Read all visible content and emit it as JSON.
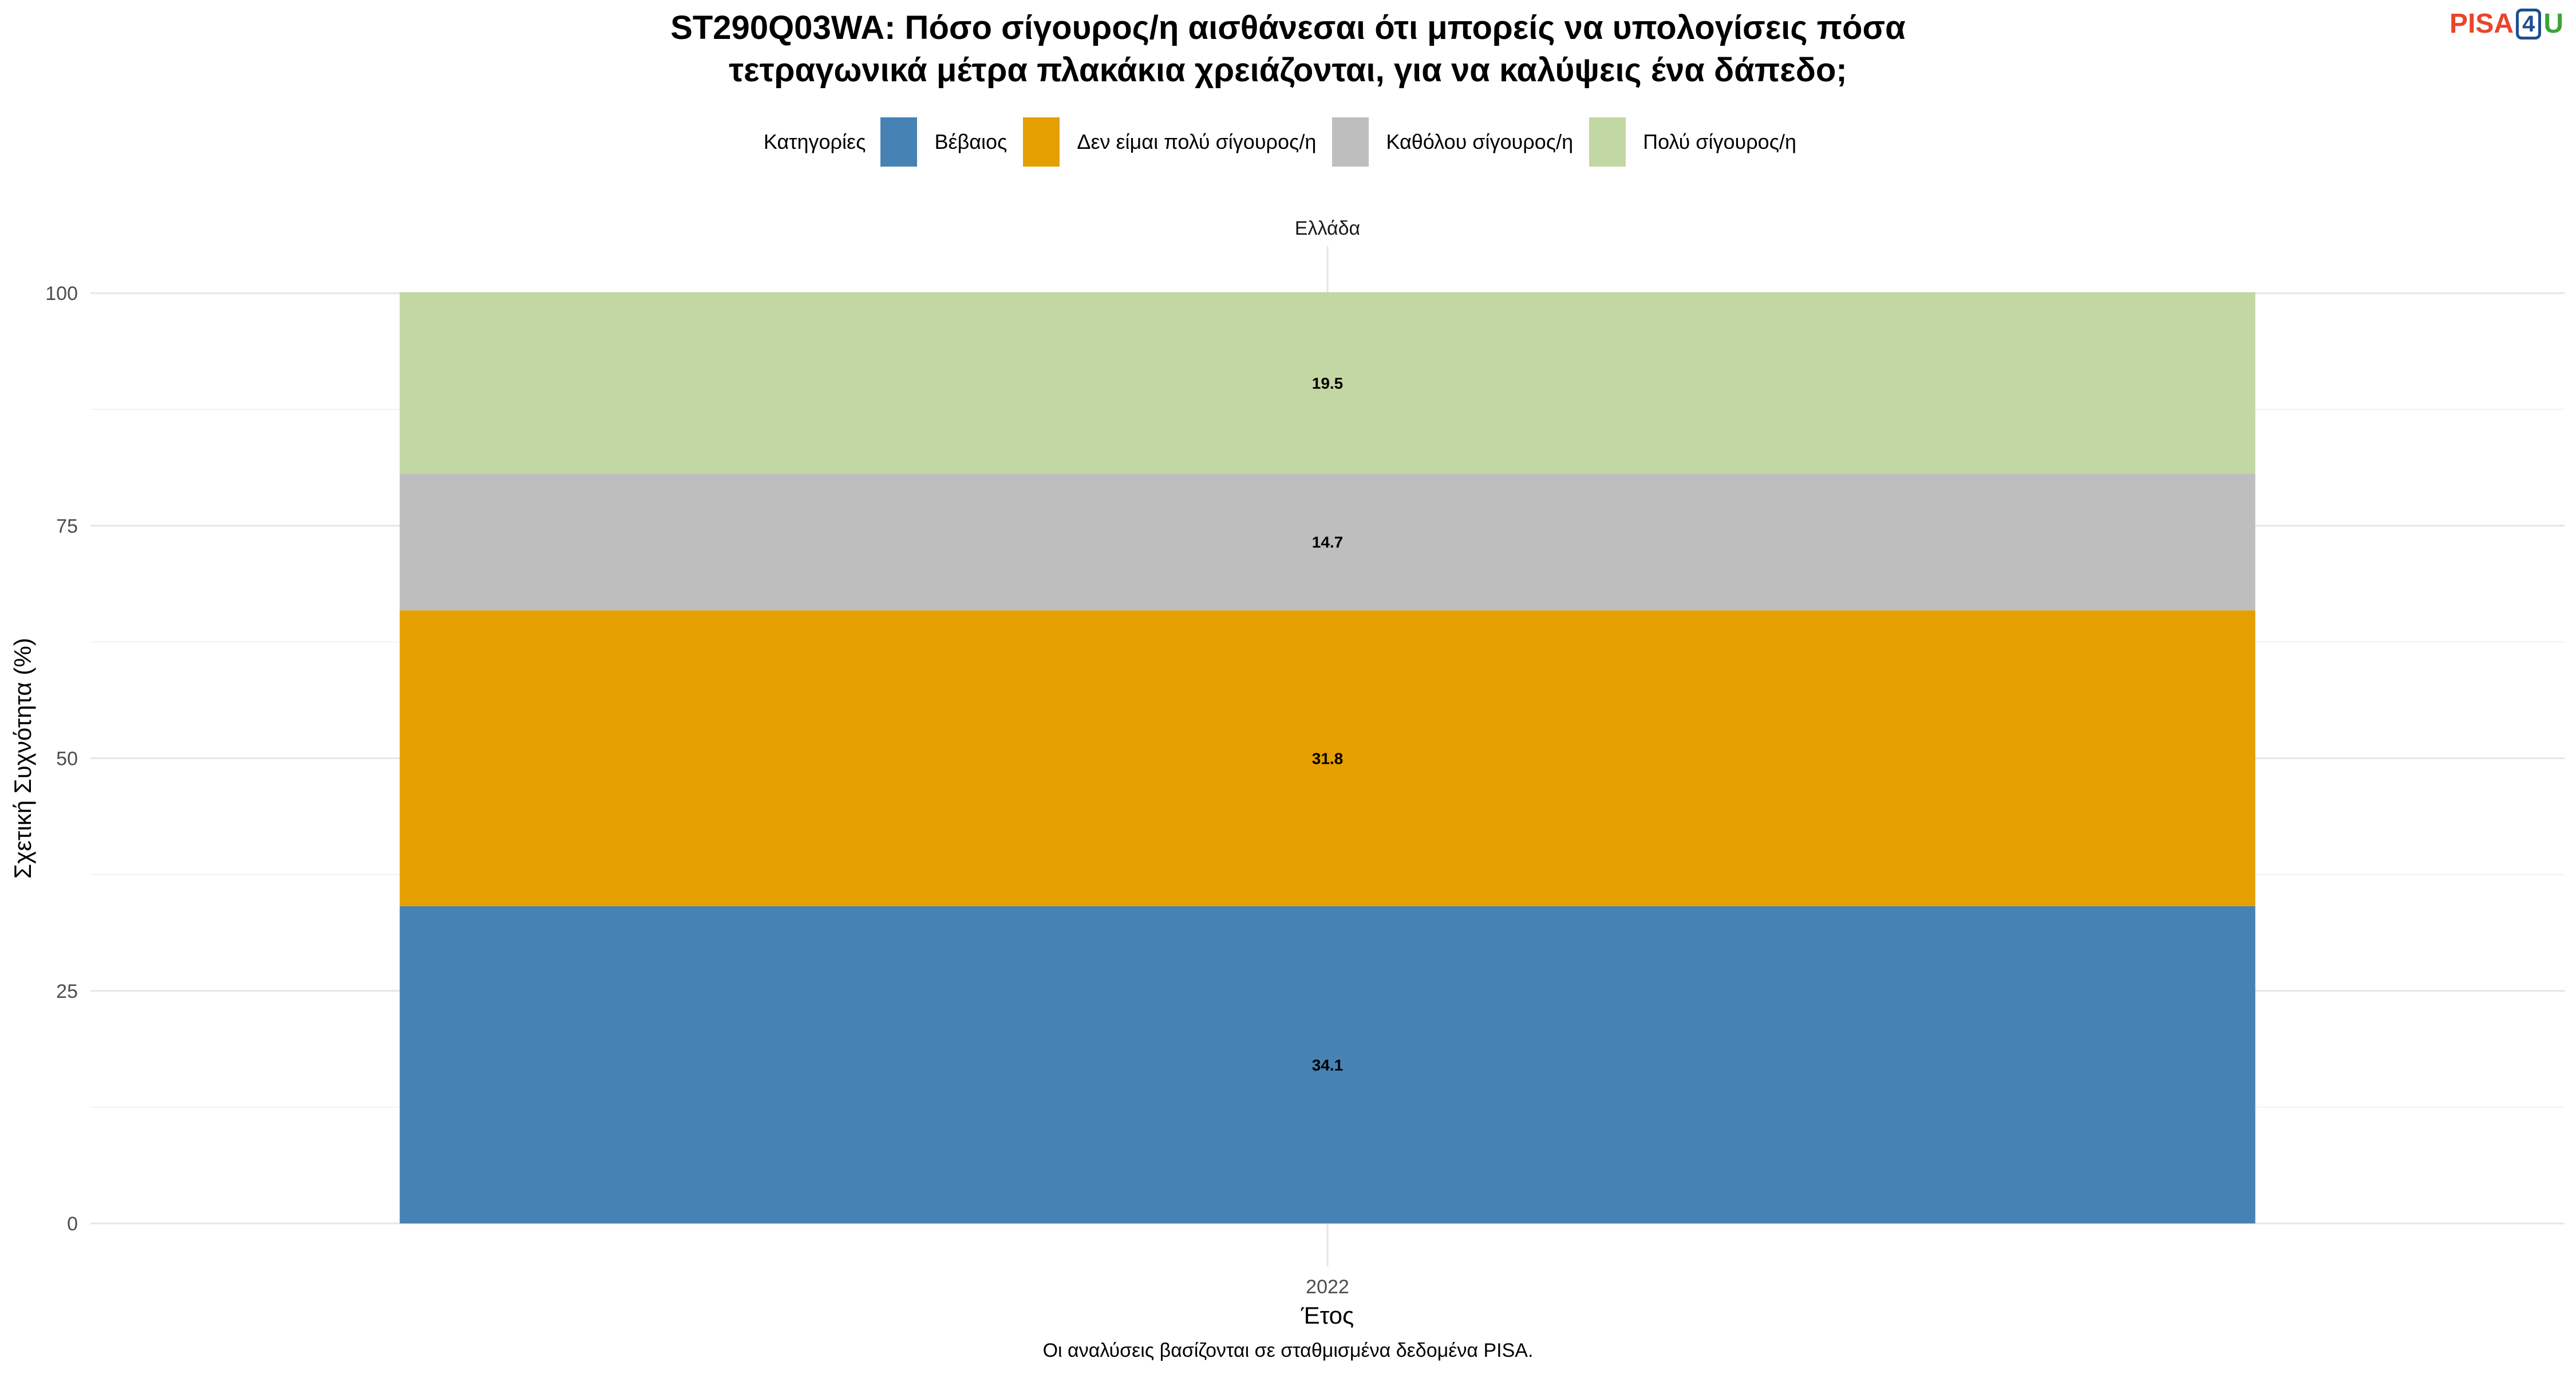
{
  "logo": {
    "part1": "PISA",
    "part2": "4",
    "part3": "U"
  },
  "caption": "Οι αναλύσεις βασίζονται σε σταθμισμένα δεδομένα PISA.",
  "colors": {
    "Βέβαιος": "#4682b4",
    "Δεν είμαι πολύ σίγουρος/η": "#e69f00",
    "Καθόλου σίγουρος/η": "#bebebe",
    "Πολύ σίγουρος/η": "#c3d7a4"
  },
  "chart_data": {
    "type": "bar",
    "stacked": true,
    "title_lines": [
      "ST290Q03WA: Πόσο σίγουρος/η αισθάνεσαι ότι μπορείς να υπολογίσεις πόσα",
      "τετραγωνικά μέτρα πλακάκια χρειάζονται, για να καλύψεις ένα δάπεδο;"
    ],
    "facet": "Ελλάδα",
    "xlabel": "Έτος",
    "ylabel": "Σχετική Συχνότητα (%)",
    "categories": [
      "2022"
    ],
    "ylim": [
      0,
      100
    ],
    "yticks": [
      0,
      25,
      50,
      75,
      100
    ],
    "legend_title": "Κατηγορίες",
    "legend_order": [
      "Βέβαιος",
      "Δεν είμαι πολύ σίγουρος/η",
      "Καθόλου σίγουρος/η",
      "Πολύ σίγουρος/η"
    ],
    "legend_position": "top",
    "grid": true,
    "series": [
      {
        "name": "Βέβαιος",
        "values": [
          34.1
        ]
      },
      {
        "name": "Δεν είμαι πολύ σίγουρος/η",
        "values": [
          31.8
        ]
      },
      {
        "name": "Καθόλου σίγουρος/η",
        "values": [
          14.7
        ]
      },
      {
        "name": "Πολύ σίγουρος/η",
        "values": [
          19.5
        ]
      }
    ]
  }
}
